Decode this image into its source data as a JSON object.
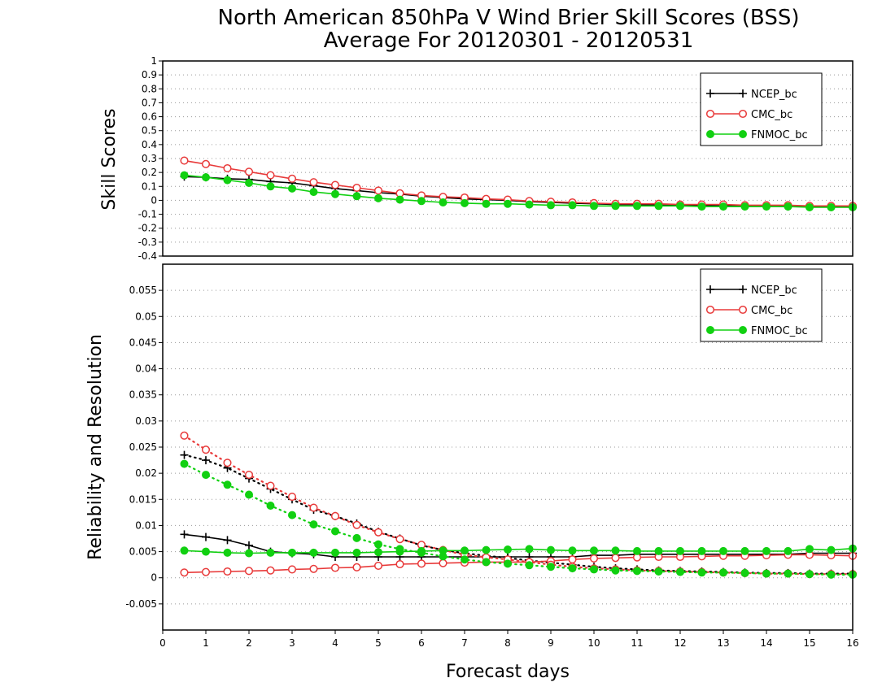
{
  "chart_data": [
    {
      "type": "line",
      "title": "North American 850hPa V Wind Brier Skill Scores (BSS)",
      "subtitle": "Average For 20120301 - 20120531",
      "xlabel": "",
      "ylabel": "Skill Scores",
      "xlim": [
        0,
        16
      ],
      "ylim": [
        -0.4,
        1
      ],
      "yticks": [
        "1",
        "0.9",
        "0.8",
        "0.7",
        "0.6",
        "0.5",
        "0.4",
        "0.3",
        "0.2",
        "0.1",
        "0",
        "-0.1",
        "-0.2",
        "-0.3",
        "-0.4"
      ],
      "grid": "horizontal dotted",
      "legend_position": "top-right",
      "x": [
        0.5,
        1,
        1.5,
        2,
        2.5,
        3,
        3.5,
        4,
        4.5,
        5,
        5.5,
        6,
        6.5,
        7,
        7.5,
        8,
        8.5,
        9,
        9.5,
        10,
        10.5,
        11,
        11.5,
        12,
        12.5,
        13,
        13.5,
        14,
        14.5,
        15,
        15.5,
        16
      ],
      "series": [
        {
          "name": "NCEP_bc",
          "color": "#000000",
          "marker": "plus",
          "linestyle": "solid",
          "values": [
            0.17,
            0.165,
            0.155,
            0.15,
            0.135,
            0.125,
            0.105,
            0.085,
            0.07,
            0.055,
            0.045,
            0.03,
            0.02,
            0.01,
            0.005,
            0.0,
            -0.01,
            -0.015,
            -0.02,
            -0.025,
            -0.03,
            -0.03,
            -0.035,
            -0.035,
            -0.035,
            -0.04,
            -0.04,
            -0.04,
            -0.045,
            -0.045,
            -0.045,
            -0.05
          ]
        },
        {
          "name": "CMC_bc",
          "color": "#e83a3a",
          "marker": "open-circle",
          "linestyle": "solid",
          "values": [
            0.285,
            0.26,
            0.23,
            0.205,
            0.18,
            0.155,
            0.13,
            0.11,
            0.09,
            0.07,
            0.05,
            0.035,
            0.025,
            0.02,
            0.01,
            0.005,
            -0.005,
            -0.01,
            -0.015,
            -0.02,
            -0.025,
            -0.025,
            -0.025,
            -0.03,
            -0.03,
            -0.03,
            -0.035,
            -0.035,
            -0.035,
            -0.04,
            -0.04,
            -0.04
          ]
        },
        {
          "name": "FNMOC_bc",
          "color": "#11d011",
          "marker": "filled-circle",
          "linestyle": "solid",
          "values": [
            0.18,
            0.165,
            0.145,
            0.125,
            0.1,
            0.085,
            0.06,
            0.045,
            0.03,
            0.015,
            0.005,
            -0.005,
            -0.015,
            -0.02,
            -0.025,
            -0.025,
            -0.03,
            -0.035,
            -0.035,
            -0.04,
            -0.04,
            -0.04,
            -0.04,
            -0.04,
            -0.045,
            -0.045,
            -0.045,
            -0.045,
            -0.045,
            -0.05,
            -0.05,
            -0.05
          ]
        }
      ]
    },
    {
      "type": "line",
      "title": "",
      "xlabel": "Forecast days",
      "ylabel": "Reliability and Resolution",
      "xlim": [
        0,
        16
      ],
      "ylim": [
        -0.01,
        0.06
      ],
      "xticks": [
        "0",
        "1",
        "2",
        "3",
        "4",
        "5",
        "6",
        "7",
        "8",
        "9",
        "10",
        "11",
        "12",
        "13",
        "14",
        "15",
        "16"
      ],
      "yticks": [
        "0.055",
        "0.05",
        "0.045",
        "0.04",
        "0.035",
        "0.03",
        "0.025",
        "0.02",
        "0.015",
        "0.01",
        "0.005",
        "0",
        "-0.005"
      ],
      "grid": "horizontal dotted",
      "legend_position": "top-right",
      "x": [
        0.5,
        1,
        1.5,
        2,
        2.5,
        3,
        3.5,
        4,
        4.5,
        5,
        5.5,
        6,
        6.5,
        7,
        7.5,
        8,
        8.5,
        9,
        9.5,
        10,
        10.5,
        11,
        11.5,
        12,
        12.5,
        13,
        13.5,
        14,
        14.5,
        15,
        15.5,
        16
      ],
      "series": [
        {
          "name": "NCEP_bc",
          "color": "#000000",
          "marker": "plus",
          "linestyle": "solid",
          "metric": "resolution",
          "values": [
            0.0083,
            0.0078,
            0.0072,
            0.0062,
            0.005,
            0.0047,
            0.0045,
            0.004,
            0.004,
            0.004,
            0.004,
            0.004,
            0.004,
            0.004,
            0.004,
            0.004,
            0.004,
            0.004,
            0.004,
            0.0043,
            0.0043,
            0.0045,
            0.0045,
            0.0045,
            0.0045,
            0.0045,
            0.0045,
            0.0045,
            0.0045,
            0.0047,
            0.0047,
            0.0047
          ]
        },
        {
          "name": "NCEP_bc",
          "color": "#000000",
          "marker": "plus",
          "linestyle": "dotted",
          "metric": "reliability",
          "values": [
            0.0235,
            0.0225,
            0.021,
            0.019,
            0.017,
            0.015,
            0.013,
            0.0118,
            0.0104,
            0.0088,
            0.0075,
            0.0062,
            0.0053,
            0.0047,
            0.0042,
            0.0038,
            0.0033,
            0.0029,
            0.0025,
            0.0021,
            0.0018,
            0.0016,
            0.0014,
            0.0013,
            0.0012,
            0.0011,
            0.001,
            0.0009,
            0.0009,
            0.0008,
            0.0008,
            0.0008
          ]
        },
        {
          "name": "CMC_bc",
          "color": "#e83a3a",
          "marker": "open-circle",
          "linestyle": "solid",
          "metric": "resolution",
          "values": [
            0.001,
            0.0011,
            0.0012,
            0.0013,
            0.0014,
            0.0016,
            0.0017,
            0.0019,
            0.002,
            0.0023,
            0.0026,
            0.0027,
            0.0028,
            0.0029,
            0.003,
            0.003,
            0.003,
            0.0032,
            0.0035,
            0.0037,
            0.0038,
            0.0039,
            0.004,
            0.004,
            0.0041,
            0.0042,
            0.0042,
            0.0043,
            0.0044,
            0.0044,
            0.0043,
            0.0042
          ]
        },
        {
          "name": "CMC_bc",
          "color": "#e83a3a",
          "marker": "open-circle",
          "linestyle": "dotted",
          "metric": "reliability",
          "values": [
            0.0272,
            0.0245,
            0.022,
            0.0197,
            0.0176,
            0.0155,
            0.0134,
            0.0118,
            0.0101,
            0.0087,
            0.0074,
            0.0063,
            0.0053,
            0.0044,
            0.0039,
            0.0035,
            0.003,
            0.0025,
            0.0021,
            0.0018,
            0.0016,
            0.0014,
            0.0013,
            0.0012,
            0.0011,
            0.001,
            0.0009,
            0.0008,
            0.0008,
            0.0007,
            0.0007,
            0.0007
          ]
        },
        {
          "name": "FNMOC_bc",
          "color": "#11d011",
          "marker": "filled-circle",
          "linestyle": "solid",
          "metric": "resolution",
          "values": [
            0.0052,
            0.005,
            0.0048,
            0.0047,
            0.0048,
            0.0048,
            0.0048,
            0.0048,
            0.0048,
            0.0049,
            0.005,
            0.0051,
            0.0052,
            0.0052,
            0.0053,
            0.0054,
            0.0055,
            0.0053,
            0.0052,
            0.0052,
            0.0052,
            0.0051,
            0.0051,
            0.0051,
            0.0051,
            0.0051,
            0.0051,
            0.0051,
            0.0051,
            0.0055,
            0.0053,
            0.0056
          ]
        },
        {
          "name": "FNMOC_bc",
          "color": "#11d011",
          "marker": "filled-circle",
          "linestyle": "dotted",
          "metric": "reliability",
          "values": [
            0.0218,
            0.0197,
            0.0178,
            0.0159,
            0.0138,
            0.012,
            0.0102,
            0.0089,
            0.0076,
            0.0064,
            0.0055,
            0.0048,
            0.0041,
            0.0035,
            0.003,
            0.0027,
            0.0024,
            0.0021,
            0.0018,
            0.0016,
            0.0014,
            0.0013,
            0.0012,
            0.0011,
            0.001,
            0.001,
            0.0009,
            0.0008,
            0.0008,
            0.0007,
            0.0006,
            0.0006
          ]
        }
      ]
    }
  ]
}
